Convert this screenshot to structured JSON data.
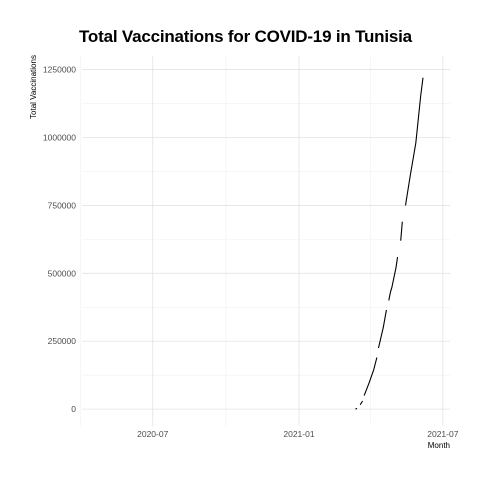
{
  "chart_data": {
    "type": "line",
    "title": "Total Vaccinations for COVID-19 in Tunisia",
    "xlabel": "Month",
    "ylabel": "Total Vaccinations",
    "x_axis_type": "date",
    "xlim": [
      "2020-04-03",
      "2021-07-10"
    ],
    "ylim": [
      -62000,
      1300000
    ],
    "x_ticks": [
      {
        "value": "2020-07-01",
        "label": "2020-07"
      },
      {
        "value": "2021-01-01",
        "label": "2021-01"
      },
      {
        "value": "2021-07-01",
        "label": "2021-07"
      }
    ],
    "x_minor_ticks": [
      "2020-04-01",
      "2020-10-01",
      "2021-04-01"
    ],
    "y_ticks": [
      {
        "value": 0,
        "label": "0"
      },
      {
        "value": 250000,
        "label": "250000"
      },
      {
        "value": 500000,
        "label": "500000"
      },
      {
        "value": 750000,
        "label": "750000"
      },
      {
        "value": 1000000,
        "label": "1000000"
      },
      {
        "value": 1250000,
        "label": "1250000"
      }
    ],
    "y_minor_ticks": [
      125000,
      375000,
      625000,
      875000,
      1125000
    ],
    "grid": true,
    "line_color": "#000000",
    "series": [
      {
        "segments": [
          [
            {
              "x": "2021-03-13",
              "y": 0
            },
            {
              "x": "2021-03-15",
              "y": 3000
            }
          ],
          [
            {
              "x": "2021-03-19",
              "y": 16000
            },
            {
              "x": "2021-03-22",
              "y": 30000
            }
          ],
          [
            {
              "x": "2021-03-24",
              "y": 50000
            },
            {
              "x": "2021-03-30",
              "y": 95000
            },
            {
              "x": "2021-04-05",
              "y": 145000
            },
            {
              "x": "2021-04-09",
              "y": 190000
            }
          ],
          [
            {
              "x": "2021-04-11",
              "y": 225000
            },
            {
              "x": "2021-04-17",
              "y": 300000
            },
            {
              "x": "2021-04-21",
              "y": 365000
            }
          ],
          [
            {
              "x": "2021-04-24",
              "y": 400000
            },
            {
              "x": "2021-04-26",
              "y": 430000
            },
            {
              "x": "2021-04-28",
              "y": 450000
            },
            {
              "x": "2021-05-03",
              "y": 520000
            },
            {
              "x": "2021-05-05",
              "y": 560000
            }
          ],
          [
            {
              "x": "2021-05-09",
              "y": 620000
            },
            {
              "x": "2021-05-11",
              "y": 690000
            }
          ],
          [
            {
              "x": "2021-05-15",
              "y": 750000
            },
            {
              "x": "2021-05-21",
              "y": 860000
            },
            {
              "x": "2021-05-28",
              "y": 980000
            },
            {
              "x": "2021-06-03",
              "y": 1150000
            },
            {
              "x": "2021-06-06",
              "y": 1220000
            }
          ]
        ]
      }
    ]
  }
}
